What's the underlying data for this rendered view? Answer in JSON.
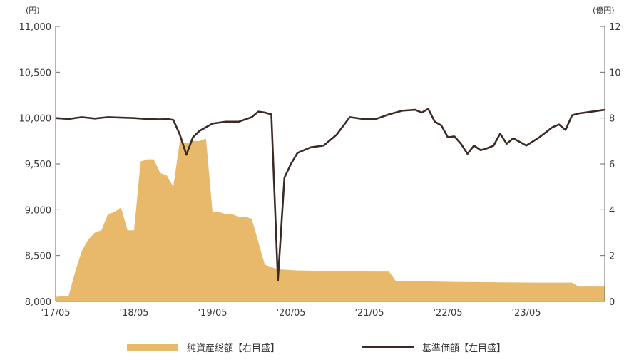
{
  "chart_data": {
    "type": "area",
    "title": "",
    "left_axis_unit": "(円)",
    "right_axis_unit": "(億円)",
    "x_ticks": [
      "'17/05",
      "'18/05",
      "'19/05",
      "'20/05",
      "'21/05",
      "'22/05",
      "'23/05"
    ],
    "xlim": [
      "2017-05",
      "2024-05"
    ],
    "ylim_left": [
      8000,
      11000
    ],
    "ylim_right": [
      0,
      12
    ],
    "y_ticks_left": [
      "8,000",
      "8,500",
      "9,000",
      "9,500",
      "10,000",
      "10,500",
      "11,000"
    ],
    "y_ticks_right": [
      "0",
      "2",
      "4",
      "6",
      "8",
      "10",
      "12"
    ],
    "series": [
      {
        "name": "純資産総額【右目盛】",
        "axis": "right",
        "style": "area",
        "color": "#E8B96A",
        "points": [
          [
            "2017-05",
            0.2
          ],
          [
            "2017-07",
            0.25
          ],
          [
            "2017-08",
            1.3
          ],
          [
            "2017-09",
            2.2
          ],
          [
            "2017-10",
            2.7
          ],
          [
            "2017-11",
            3.0
          ],
          [
            "2017-12",
            3.1
          ],
          [
            "2018-01",
            3.8
          ],
          [
            "2018-02",
            3.9
          ],
          [
            "2018-03",
            4.1
          ],
          [
            "2018-04",
            3.1
          ],
          [
            "2018-05",
            3.1
          ],
          [
            "2018-06",
            6.1
          ],
          [
            "2018-07",
            6.2
          ],
          [
            "2018-08",
            6.2
          ],
          [
            "2018-09",
            5.6
          ],
          [
            "2018-10",
            5.5
          ],
          [
            "2018-11",
            5.0
          ],
          [
            "2018-12",
            7.0
          ],
          [
            "2019-01",
            6.9
          ],
          [
            "2019-02",
            7.0
          ],
          [
            "2019-03",
            7.0
          ],
          [
            "2019-04",
            7.1
          ],
          [
            "2019-05",
            3.9
          ],
          [
            "2019-06",
            3.9
          ],
          [
            "2019-07",
            3.8
          ],
          [
            "2019-08",
            3.8
          ],
          [
            "2019-09",
            3.7
          ],
          [
            "2019-10",
            3.7
          ],
          [
            "2019-11",
            3.6
          ],
          [
            "2019-12",
            2.6
          ],
          [
            "2020-01",
            1.6
          ],
          [
            "2020-03",
            1.4
          ],
          [
            "2020-06",
            1.35
          ],
          [
            "2020-12",
            1.32
          ],
          [
            "2021-06",
            1.3
          ],
          [
            "2021-08",
            1.3
          ],
          [
            "2021-09",
            0.9
          ],
          [
            "2022-06",
            0.85
          ],
          [
            "2023-06",
            0.82
          ],
          [
            "2023-12",
            0.82
          ],
          [
            "2024-01",
            0.65
          ],
          [
            "2024-05",
            0.65
          ]
        ]
      },
      {
        "name": "基準価額【左目盛】",
        "axis": "left",
        "style": "line",
        "color": "#3B2A26",
        "points": [
          [
            "2017-05",
            10000
          ],
          [
            "2017-07",
            9990
          ],
          [
            "2017-09",
            10010
          ],
          [
            "2017-11",
            9995
          ],
          [
            "2018-01",
            10010
          ],
          [
            "2018-03",
            10005
          ],
          [
            "2018-05",
            10000
          ],
          [
            "2018-07",
            9990
          ],
          [
            "2018-09",
            9985
          ],
          [
            "2018-10",
            9990
          ],
          [
            "2018-11",
            9980
          ],
          [
            "2018-12",
            9820
          ],
          [
            "2019-01",
            9600
          ],
          [
            "2019-02",
            9790
          ],
          [
            "2019-03",
            9860
          ],
          [
            "2019-05",
            9940
          ],
          [
            "2019-07",
            9960
          ],
          [
            "2019-09",
            9960
          ],
          [
            "2019-11",
            10010
          ],
          [
            "2019-12",
            10070
          ],
          [
            "2020-01",
            10060
          ],
          [
            "2020-02",
            10040
          ],
          [
            "2020-03",
            8230
          ],
          [
            "2020-04",
            9350
          ],
          [
            "2020-05",
            9500
          ],
          [
            "2020-06",
            9620
          ],
          [
            "2020-08",
            9680
          ],
          [
            "2020-10",
            9700
          ],
          [
            "2020-12",
            9820
          ],
          [
            "2021-02",
            10010
          ],
          [
            "2021-04",
            9990
          ],
          [
            "2021-06",
            9990
          ],
          [
            "2021-08",
            10040
          ],
          [
            "2021-10",
            10080
          ],
          [
            "2021-12",
            10090
          ],
          [
            "2022-01",
            10060
          ],
          [
            "2022-02",
            10100
          ],
          [
            "2022-03",
            9960
          ],
          [
            "2022-04",
            9920
          ],
          [
            "2022-05",
            9790
          ],
          [
            "2022-06",
            9800
          ],
          [
            "2022-07",
            9720
          ],
          [
            "2022-08",
            9610
          ],
          [
            "2022-09",
            9700
          ],
          [
            "2022-10",
            9650
          ],
          [
            "2022-11",
            9670
          ],
          [
            "2022-12",
            9700
          ],
          [
            "2023-01",
            9830
          ],
          [
            "2023-02",
            9720
          ],
          [
            "2023-03",
            9780
          ],
          [
            "2023-05",
            9700
          ],
          [
            "2023-07",
            9790
          ],
          [
            "2023-09",
            9900
          ],
          [
            "2023-10",
            9930
          ],
          [
            "2023-11",
            9870
          ],
          [
            "2023-12",
            10030
          ],
          [
            "2024-01",
            10050
          ],
          [
            "2024-03",
            10070
          ],
          [
            "2024-05",
            10090
          ]
        ]
      }
    ]
  },
  "legend": {
    "area_label": "純資産総額【右目盛】",
    "line_label": "基準価額【左目盛】"
  }
}
